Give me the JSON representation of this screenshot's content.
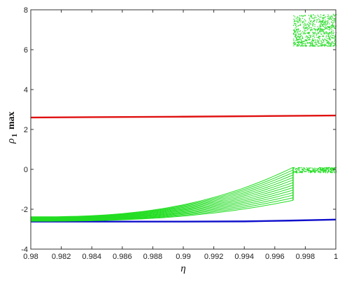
{
  "chart_data": {
    "type": "scatter",
    "title": "",
    "xlabel": "η",
    "ylabel_symbol": "ρ",
    "ylabel_subscript": "1",
    "ylabel_suffix": "max",
    "xlim": [
      0.98,
      1.0
    ],
    "ylim": [
      -4,
      8
    ],
    "xticks": [
      0.98,
      0.982,
      0.984,
      0.986,
      0.988,
      0.99,
      0.992,
      0.994,
      0.996,
      0.998,
      1
    ],
    "xtick_labels": [
      "0.98",
      "0.982",
      "0.984",
      "0.986",
      "0.988",
      "0.99",
      "0.992",
      "0.994",
      "0.996",
      "0.998",
      "1"
    ],
    "yticks": [
      -4,
      -2,
      0,
      2,
      4,
      6,
      8
    ],
    "ytick_labels": [
      "-4",
      "-2",
      "0",
      "2",
      "4",
      "6",
      "8"
    ],
    "grid": false,
    "series": [
      {
        "color": "#e01010",
        "style": "line",
        "x": [
          0.98,
          0.985,
          0.99,
          0.995,
          1.0
        ],
        "y": [
          2.6,
          2.62,
          2.64,
          2.67,
          2.7
        ]
      },
      {
        "color": "#1010cc",
        "style": "line",
        "x": [
          0.98,
          0.99,
          0.994,
          0.997,
          1.0
        ],
        "y": [
          -2.62,
          -2.62,
          -2.61,
          -2.57,
          -2.52
        ]
      },
      {
        "color": "#22dd22",
        "style": "fan",
        "x_start": 0.98,
        "x_end": 0.9972,
        "y_start_range": [
          -2.6,
          -2.38
        ],
        "y_end_range": [
          -1.55,
          0.1
        ],
        "x_plateau": [
          0.9972,
          1.0
        ],
        "y_plateau_range": [
          -0.15,
          0.12
        ],
        "x_cloud": [
          0.9972,
          1.0
        ],
        "y_cloud_range": [
          6.2,
          7.8
        ]
      }
    ]
  }
}
